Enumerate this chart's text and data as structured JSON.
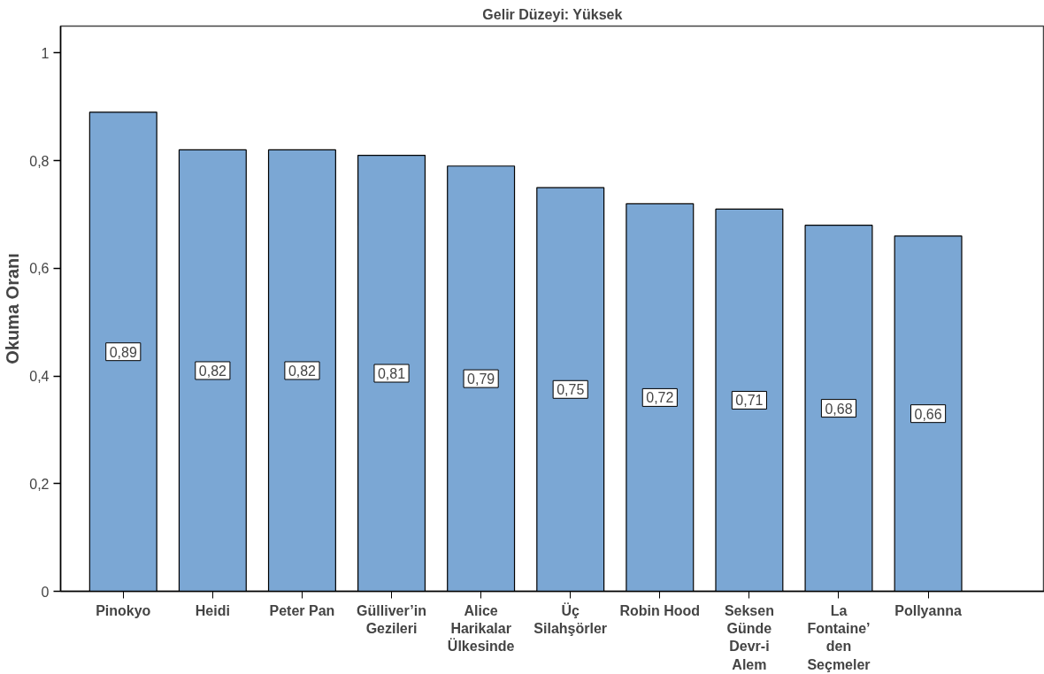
{
  "chart_data": {
    "type": "bar",
    "title": "Gelir Düzeyi: Yüksek",
    "ylabel": "Okuma Oranı",
    "categories": [
      "Pinokyo",
      "Heidi",
      "Peter Pan",
      "Gülliver’in\nGezileri",
      "Alice\nHarikalar\nÜlkesinde",
      "Üç\nSilahşörler",
      "Robin Hood",
      "Seksen\nGünde\nDevr-i\nAlem",
      "La\nFontaine’\nden\nSeçmeler",
      "Pollyanna"
    ],
    "values": [
      0.89,
      0.82,
      0.82,
      0.81,
      0.79,
      0.75,
      0.72,
      0.71,
      0.68,
      0.66
    ],
    "color": "#7ba7d4",
    "ylim": [
      0,
      1.05
    ],
    "yticks": [
      0,
      {
        "value": 0.2,
        "label": "0,2"
      },
      {
        "value": 0.4,
        "label": "0,4"
      },
      {
        "value": 0.6,
        "label": "0,6"
      },
      {
        "value": 0.8,
        "label": "0,8"
      },
      1
    ],
    "value_labels": [
      "0,89",
      "0,82",
      "0,82",
      "0,81",
      "0,79",
      "0,75",
      "0,72",
      "0,71",
      "0,68",
      "0,66"
    ],
    "grid": false
  }
}
